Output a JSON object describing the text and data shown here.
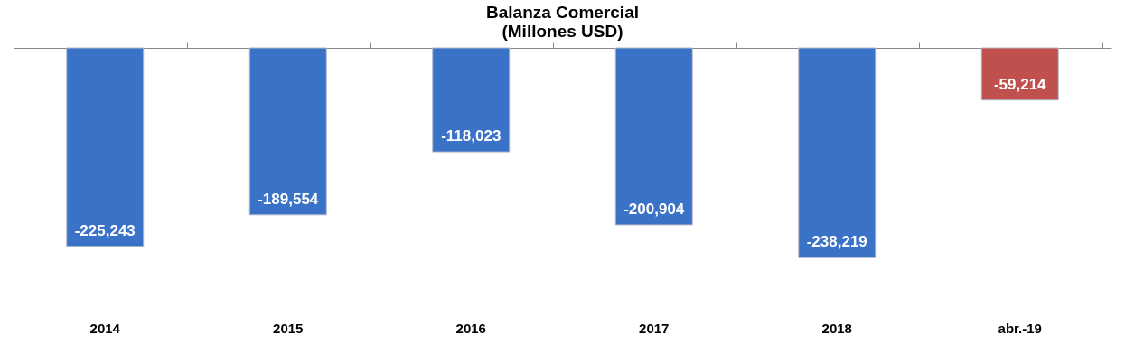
{
  "chart_data": {
    "type": "bar",
    "title": "Balanza Comercial",
    "subtitle": "(Millones USD)",
    "categories": [
      "2014",
      "2015",
      "2016",
      "2017",
      "2018",
      "abr.-19"
    ],
    "values": [
      -225243,
      -189554,
      -118023,
      -200904,
      -238219,
      -59214
    ],
    "value_labels": [
      "-225,243",
      "-189,554",
      "-118,023",
      "-200,904",
      "-238,219",
      "-59,214"
    ],
    "colors": [
      "#3a72c8",
      "#3a72c8",
      "#3a72c8",
      "#3a72c8",
      "#3a72c8",
      "#c0504d"
    ]
  }
}
